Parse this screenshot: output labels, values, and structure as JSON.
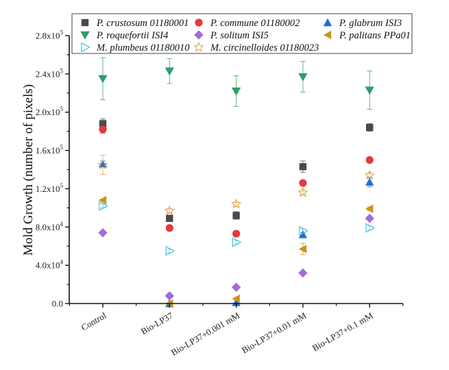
{
  "chart_data": {
    "type": "scatter",
    "title": "",
    "xlabel": "",
    "ylabel": "Mold Growth (number of pixels)",
    "categories": [
      "Control",
      "Bio-LP37",
      "Bio-LP37+0.001 mM",
      "Bio-LP37+0.01 mM",
      "Bio-LP37+0.1 mM"
    ],
    "ylim": [
      0,
      280000
    ],
    "yticks": [
      0,
      40000,
      80000,
      120000,
      160000,
      200000,
      240000,
      280000
    ],
    "ytick_labels": [
      {
        "mantissa": "0.0",
        "exp": ""
      },
      {
        "mantissa": "4.0x10",
        "exp": "4"
      },
      {
        "mantissa": "8.0x10",
        "exp": "4"
      },
      {
        "mantissa": "1.2x10",
        "exp": "5"
      },
      {
        "mantissa": "1.6x10",
        "exp": "5"
      },
      {
        "mantissa": "2.0x10",
        "exp": "5"
      },
      {
        "mantissa": "2.4x10",
        "exp": "5"
      },
      {
        "mantissa": "2.8x10",
        "exp": "5"
      }
    ],
    "grid": false,
    "legend_position": "top",
    "series": [
      {
        "name": "P. crustosum 01180001",
        "marker": "square",
        "color": "#4a4a4a",
        "values": [
          188000,
          89000,
          92000,
          143000,
          184000
        ],
        "errors": [
          5000,
          3000,
          4000,
          6000,
          4000
        ]
      },
      {
        "name": "P. commune 01180002",
        "marker": "circle",
        "color": "#e23b3b",
        "values": [
          182000,
          79000,
          73000,
          126000,
          150000
        ],
        "errors": [
          4000,
          2000,
          3000,
          2000,
          2000
        ]
      },
      {
        "name": "P. glabrum ISI3",
        "marker": "triangle-up",
        "color": "#1f6fd6",
        "values": [
          146000,
          0,
          1000,
          72000,
          127000
        ],
        "errors": [
          3000,
          0,
          0,
          2000,
          5000
        ]
      },
      {
        "name": "P. roquefortii ISI4",
        "marker": "triangle-down",
        "color": "#2e9e6a",
        "values": [
          235000,
          243000,
          222000,
          237000,
          223000
        ],
        "errors": [
          22000,
          13000,
          16000,
          16000,
          20000
        ]
      },
      {
        "name": "P. solitum ISI5",
        "marker": "diamond",
        "color": "#a46ad8",
        "values": [
          74000,
          8000,
          17000,
          32000,
          89000
        ],
        "errors": [
          1000,
          1000,
          1000,
          1000,
          1000
        ]
      },
      {
        "name": "P. palitans PPa01",
        "marker": "triangle-left",
        "color": "#c9951a",
        "values": [
          108000,
          0,
          5000,
          57000,
          99000
        ],
        "errors": [
          1000,
          1000,
          1000,
          6000,
          2000
        ]
      },
      {
        "name": "M. plumbeus 01180010",
        "marker": "triangle-right-open",
        "color": "#4ec3d8",
        "values": [
          102000,
          55000,
          64000,
          76000,
          79000
        ],
        "errors": [
          2000,
          2000,
          2000,
          2000,
          2000
        ]
      },
      {
        "name": "M. circinelloides 01180023",
        "marker": "star-open",
        "color": "#e0a040",
        "values": [
          145000,
          97000,
          104000,
          116000,
          134000
        ],
        "errors": [
          10000,
          2000,
          2000,
          2000,
          3000
        ]
      }
    ]
  }
}
